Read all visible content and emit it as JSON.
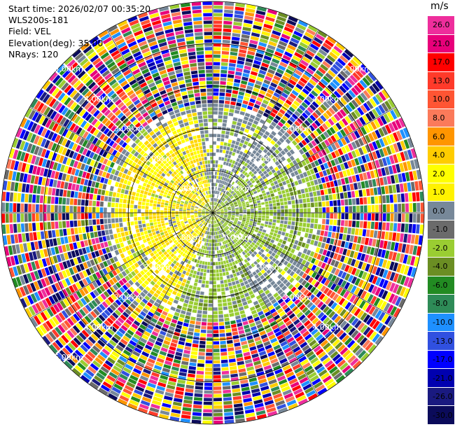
{
  "info": {
    "start_time": "Start time: 2026/02/07 00:35:20",
    "instrument": "WLS200s-181",
    "field": "Field: VEL",
    "elevation": "Elevation(deg): 35.00",
    "nrays": "NRays: 120"
  },
  "colorbar": {
    "units": "m/s",
    "levels": [
      {
        "label": "26.0",
        "color": "#ee2e9c"
      },
      {
        "label": "21.0",
        "color": "#e8007a"
      },
      {
        "label": "17.0",
        "color": "#ff0000"
      },
      {
        "label": "13.0",
        "color": "#ff3a2a"
      },
      {
        "label": "10.0",
        "color": "#ff5533"
      },
      {
        "label": "8.0",
        "color": "#fb7a5a"
      },
      {
        "label": "6.0",
        "color": "#ff9500"
      },
      {
        "label": "4.0",
        "color": "#ffcc00"
      },
      {
        "label": "2.0",
        "color": "#ffff00"
      },
      {
        "label": "1.0",
        "color": "#fff200"
      },
      {
        "label": "0.0",
        "color": "#778899"
      },
      {
        "label": "-1.0",
        "color": "#6b6b6b"
      },
      {
        "label": "-2.0",
        "color": "#9acd32"
      },
      {
        "label": "-4.0",
        "color": "#6b8e23"
      },
      {
        "label": "-6.0",
        "color": "#228b22"
      },
      {
        "label": "-8.0",
        "color": "#2e8b57"
      },
      {
        "label": "-10.0",
        "color": "#1e90ff"
      },
      {
        "label": "-13.0",
        "color": "#3050e0"
      },
      {
        "label": "-17.0",
        "color": "#0000ff"
      },
      {
        "label": "-21.0",
        "color": "#0000b0"
      },
      {
        "label": "-26.0",
        "color": "#1a1a80"
      },
      {
        "label": "-30.0",
        "color": "#0b0b5a"
      }
    ]
  },
  "chart_data": {
    "type": "heatmap",
    "projection": "polar PPI",
    "field": "VEL",
    "nrays": 120,
    "elevation_deg": 35.0,
    "units": "m/s",
    "max_range_km": 5.0,
    "range_rings_km": [
      1.0,
      2.0,
      3.0,
      4.0,
      5.0
    ],
    "ring_labels": [
      {
        "text": "1.00km",
        "ring": 1,
        "angle_deg": 135
      },
      {
        "text": "1.00km",
        "ring": 1,
        "angle_deg": 45
      },
      {
        "text": "1.00km",
        "ring": 1,
        "angle_deg": 225
      },
      {
        "text": "1.00km",
        "ring": 1,
        "angle_deg": 315
      },
      {
        "text": "2.00km",
        "ring": 2,
        "angle_deg": 135
      },
      {
        "text": "2.00km",
        "ring": 2,
        "angle_deg": 45
      },
      {
        "text": "2.00km",
        "ring": 2,
        "angle_deg": 225
      },
      {
        "text": "2.00km",
        "ring": 2,
        "angle_deg": 315
      },
      {
        "text": "3.00km",
        "ring": 3,
        "angle_deg": 135
      },
      {
        "text": "3.00km",
        "ring": 3,
        "angle_deg": 45
      },
      {
        "text": "3.00km",
        "ring": 3,
        "angle_deg": 225
      },
      {
        "text": "3.00km",
        "ring": 3,
        "angle_deg": 315
      },
      {
        "text": "4.00km",
        "ring": 4,
        "angle_deg": 135
      },
      {
        "text": "4.00km",
        "ring": 4,
        "angle_deg": 45
      },
      {
        "text": "4.00km",
        "ring": 4,
        "angle_deg": 225
      },
      {
        "text": "4.00km",
        "ring": 4,
        "angle_deg": 315
      },
      {
        "text": "5.00km",
        "ring": 5,
        "angle_deg": 135
      },
      {
        "text": "5.00km",
        "ring": 5,
        "angle_deg": 45
      },
      {
        "text": "5.00km",
        "ring": 5,
        "angle_deg": 225
      }
    ],
    "regions": [
      {
        "sector": "west, 0-2.5 km",
        "velocity_mps": "1.0 to 4.0",
        "color": "#ffff00"
      },
      {
        "sector": "east, 0-2.0 km",
        "velocity_mps": "-2.0 to -4.0",
        "color": "#9acd32"
      },
      {
        "sector": "north/south, 0-2.5 km",
        "velocity_mps": "0.0 to -1.0",
        "color": "#778899"
      },
      {
        "sector": "all, 2.5-5.0 km",
        "velocity_mps": "noise (-30.0 to 26.0)",
        "color": "mixed"
      }
    ]
  }
}
